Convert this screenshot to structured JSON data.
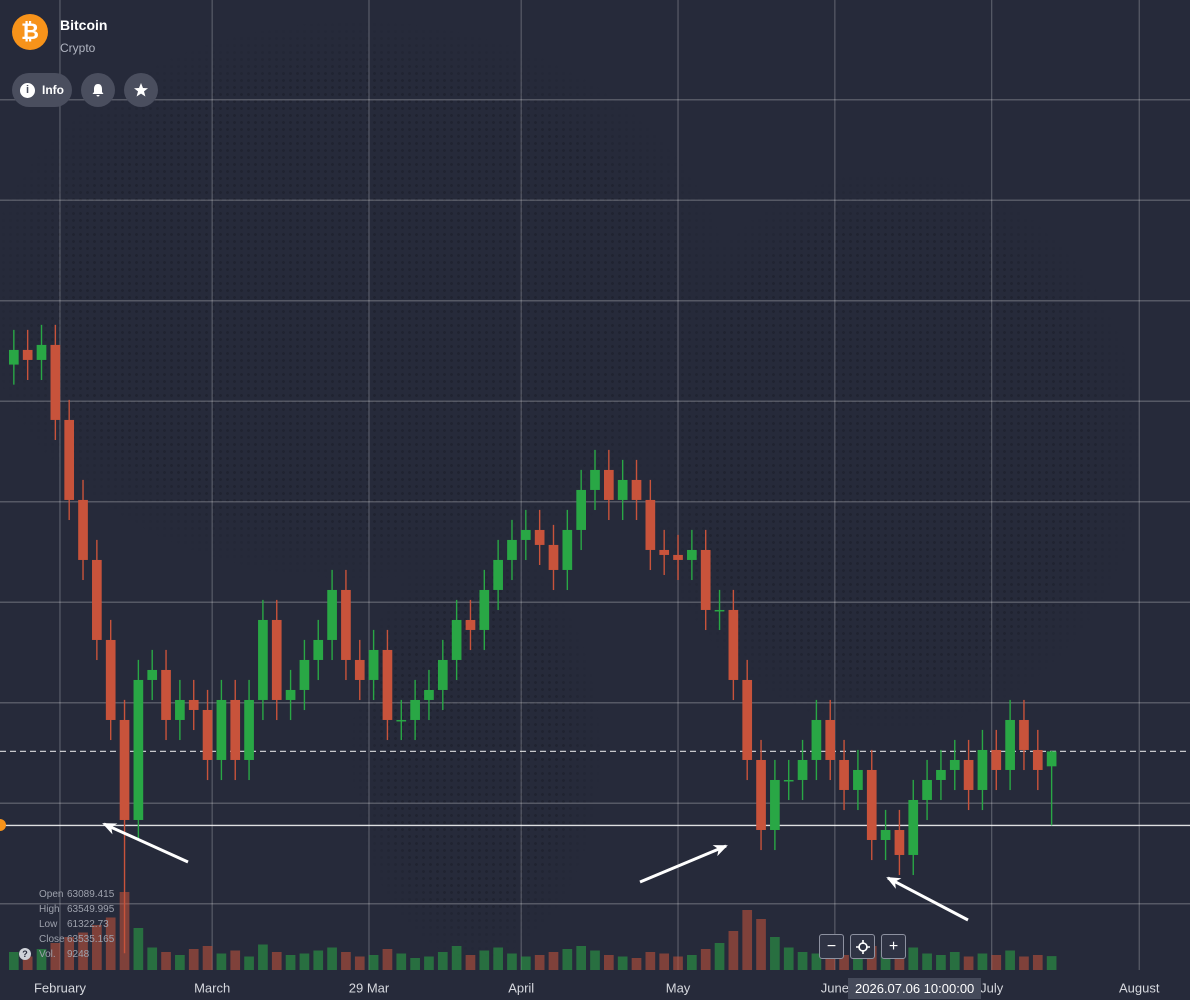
{
  "header": {
    "info_button": "Info"
  },
  "crosshair_label": "2026.07.06 10:00:00",
  "chart_data": {
    "type": "candlestick",
    "title": "Bitcoin",
    "subtitle": "Crypto",
    "up_color": "#29a745",
    "down_color": "#c8533b",
    "xlim": [
      0,
      258
    ],
    "ylim": [
      57000,
      86000
    ],
    "vlim": [
      0,
      60000
    ],
    "xticks": [
      {
        "value": 13,
        "label": "February"
      },
      {
        "value": 46,
        "label": "March"
      },
      {
        "value": 80,
        "label": "29 Mar"
      },
      {
        "value": 113,
        "label": "April"
      },
      {
        "value": 147,
        "label": "May"
      },
      {
        "value": 181,
        "label": "June"
      },
      {
        "value": 215,
        "label": "July"
      },
      {
        "value": 247,
        "label": "August"
      }
    ],
    "legend_labels": [
      "Open",
      "High",
      "Low",
      "Close",
      "Vol."
    ],
    "x": [
      3,
      6,
      9,
      12,
      15,
      18,
      21,
      24,
      27,
      30,
      33,
      36,
      39,
      42,
      45,
      48,
      51,
      54,
      57,
      60,
      63,
      66,
      69,
      72,
      75,
      78,
      81,
      84,
      87,
      90,
      93,
      96,
      99,
      102,
      105,
      108,
      111,
      114,
      117,
      120,
      123,
      126,
      129,
      132,
      135,
      138,
      141,
      144,
      147,
      150,
      153,
      156,
      159,
      162,
      165,
      168,
      171,
      174,
      177,
      180,
      183,
      186,
      189,
      192,
      195,
      198,
      201,
      204,
      207,
      210,
      213,
      216,
      219,
      222,
      225,
      228
    ],
    "open": [
      75100,
      75538,
      75239,
      75688,
      73445,
      71053,
      69259,
      66867,
      64475,
      61485,
      65671,
      65970,
      64475,
      65073,
      64774,
      63279,
      65073,
      63279,
      65073,
      67465,
      65073,
      65372,
      66269,
      66867,
      68362,
      66269,
      65671,
      66568,
      64475,
      64475,
      65073,
      65372,
      66269,
      67465,
      67166,
      68362,
      69259,
      69857,
      70156,
      69708,
      68960,
      70156,
      71352,
      71950,
      71053,
      71651,
      71053,
      69558,
      69409,
      69259,
      69558,
      67764,
      67764,
      65671,
      63279,
      61186,
      62681,
      62681,
      63279,
      64475,
      63279,
      62382,
      62980,
      60887,
      61186,
      60439,
      62083,
      62681,
      62980,
      63279,
      62382,
      63578,
      62980,
      64475,
      63578,
      63089.415
    ],
    "high": [
      76138,
      76138,
      76288,
      76288,
      74045,
      71653,
      69859,
      67467,
      65075,
      66271,
      66570,
      66570,
      65673,
      65673,
      65374,
      65673,
      65673,
      65673,
      68065,
      68065,
      65972,
      66869,
      67467,
      68962,
      68962,
      66869,
      67168,
      67168,
      65075,
      65673,
      65972,
      66869,
      68065,
      68065,
      68962,
      69859,
      70457,
      70756,
      70756,
      70308,
      70756,
      71952,
      72550,
      72550,
      72251,
      72251,
      71653,
      70158,
      70009,
      70158,
      70158,
      68364,
      68364,
      66271,
      63879,
      63281,
      63281,
      63879,
      65075,
      65075,
      63879,
      63580,
      63580,
      61786,
      61786,
      62683,
      63281,
      63580,
      63879,
      63879,
      64178,
      64178,
      65075,
      65075,
      64178,
      63549.995
    ],
    "low": [
      74500,
      74639,
      74639,
      72845,
      70453,
      68659,
      66267,
      63875,
      57500,
      60885,
      65071,
      63875,
      63875,
      64174,
      62679,
      62679,
      62679,
      62679,
      64473,
      64473,
      64473,
      64772,
      65669,
      66267,
      65669,
      65071,
      65071,
      63875,
      63875,
      63875,
      64473,
      64772,
      65669,
      66566,
      66566,
      67762,
      68659,
      69257,
      69108,
      68360,
      68360,
      69556,
      70752,
      70453,
      70453,
      70453,
      68958,
      68809,
      68659,
      68659,
      67164,
      67164,
      65071,
      62679,
      60586,
      60586,
      62081,
      62081,
      62679,
      62679,
      61782,
      61782,
      60287,
      60287,
      59839,
      59839,
      61483,
      62081,
      62380,
      61782,
      61782,
      62380,
      62380,
      62978,
      62380,
      61322.73
    ],
    "close": [
      75538,
      75239,
      75688,
      73445,
      71053,
      69259,
      66867,
      64475,
      61485,
      65671,
      65970,
      64475,
      65073,
      64774,
      63279,
      65073,
      63279,
      65073,
      67465,
      65073,
      65372,
      66269,
      66867,
      68362,
      66269,
      65671,
      66568,
      64475,
      64475,
      65073,
      65372,
      66269,
      67465,
      67166,
      68362,
      69259,
      69857,
      70156,
      69708,
      68960,
      70156,
      71352,
      71950,
      71053,
      71651,
      71053,
      69558,
      69409,
      69259,
      69558,
      67764,
      67764,
      65671,
      63279,
      61186,
      62681,
      62681,
      63279,
      64475,
      63279,
      62382,
      62980,
      60887,
      61186,
      60439,
      62083,
      62681,
      62980,
      63279,
      62382,
      63578,
      62980,
      64475,
      63578,
      62980,
      63535.165
    ],
    "volume": [
      12000,
      9000,
      14000,
      18000,
      22000,
      25000,
      30000,
      35000,
      52000,
      28000,
      15000,
      12000,
      10000,
      14000,
      16000,
      11000,
      13000,
      9000,
      17000,
      12000,
      10000,
      11000,
      13000,
      15000,
      12000,
      9000,
      10000,
      14000,
      11000,
      8000,
      9000,
      12000,
      16000,
      10000,
      13000,
      15000,
      11000,
      9000,
      10000,
      12000,
      14000,
      16000,
      13000,
      10000,
      9000,
      8000,
      12000,
      11000,
      9000,
      10000,
      14000,
      18000,
      26000,
      40000,
      34000,
      22000,
      15000,
      12000,
      11000,
      14000,
      10000,
      12000,
      16000,
      13000,
      18000,
      15000,
      11000,
      10000,
      12000,
      9000,
      11000,
      10000,
      13000,
      9000,
      10000,
      9248
    ]
  }
}
